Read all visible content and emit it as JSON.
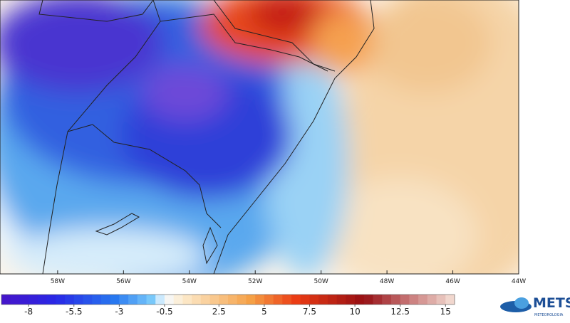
{
  "map": {
    "longitude_axis": {
      "lim": [
        -59.75,
        -44
      ],
      "ticks": [
        {
          "value": -58,
          "label": "58W"
        },
        {
          "value": -56,
          "label": "56W"
        },
        {
          "value": -54,
          "label": "54W"
        },
        {
          "value": -52,
          "label": "52W"
        },
        {
          "value": -50,
          "label": "50W"
        },
        {
          "value": -48,
          "label": "48W"
        },
        {
          "value": -46,
          "label": "46W"
        },
        {
          "value": -44,
          "label": "44W"
        }
      ]
    },
    "colorbar": {
      "lim": [
        -9.5,
        15.5
      ],
      "ticks": [
        -8,
        -5.5,
        -3,
        -0.5,
        2.5,
        5,
        7.5,
        10,
        12.5,
        15
      ]
    },
    "logo": {
      "name": "METSUL",
      "tagline": "METEOROLOGIA"
    }
  }
}
